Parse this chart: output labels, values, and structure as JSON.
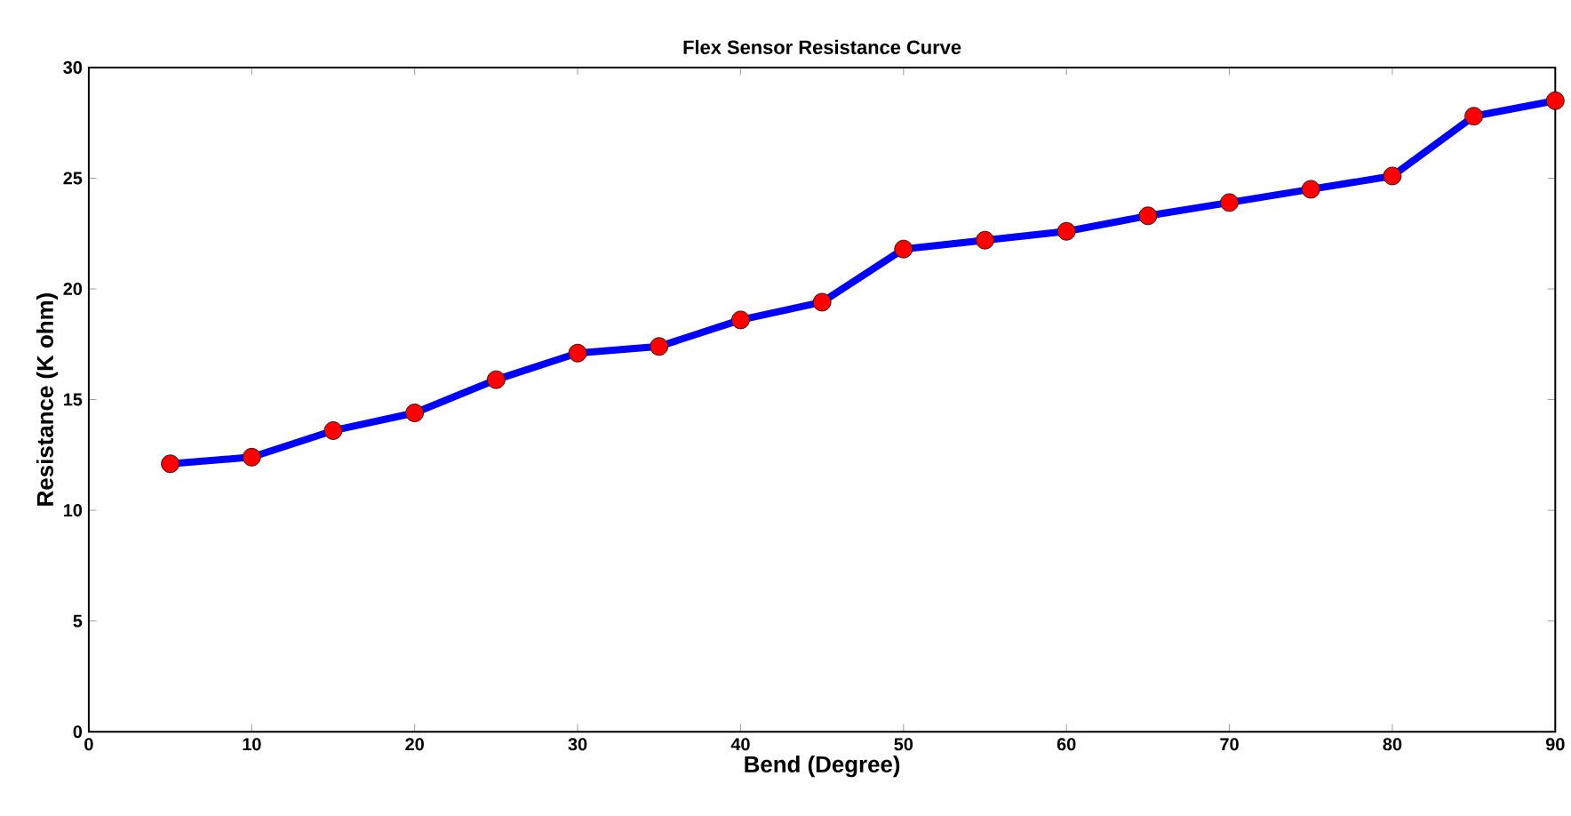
{
  "chart_data": {
    "type": "line",
    "title": "Flex Sensor Resistance Curve",
    "xlabel": "Bend (Degree)",
    "ylabel": "Resistance (K ohm)",
    "x": [
      5,
      10,
      15,
      20,
      25,
      30,
      35,
      40,
      45,
      50,
      55,
      60,
      65,
      70,
      75,
      80,
      85,
      90
    ],
    "series": [
      {
        "color": "#0000ff",
        "colors": [
          "#ff0000",
          "#ff0000",
          "#ff0000",
          "#ff0000",
          "#ff0000",
          "#ff0000",
          "#ff0000",
          "#ff0000",
          "#ff0000",
          "#ff0000",
          "#ff0000",
          "#ff0000",
          "#ff0000",
          "#ff0000",
          "#ff0000",
          "#ff0000",
          "#ff0000",
          "#ff0000"
        ],
        "values": [
          12.1,
          12.4,
          13.6,
          14.4,
          15.9,
          17.1,
          17.4,
          18.6,
          19.4,
          21.8,
          22.2,
          22.6,
          23.3,
          23.9,
          24.5,
          25.1,
          27.8,
          28.5
        ]
      }
    ],
    "marker": "circle",
    "line_style": "solid",
    "xlim": [
      0,
      90
    ],
    "ylim": [
      0,
      30
    ],
    "xticks": [
      0,
      10,
      20,
      30,
      40,
      50,
      60,
      70,
      80,
      90
    ],
    "yticks": [
      0,
      5,
      10,
      15,
      20,
      25,
      30
    ],
    "grid": false
  }
}
